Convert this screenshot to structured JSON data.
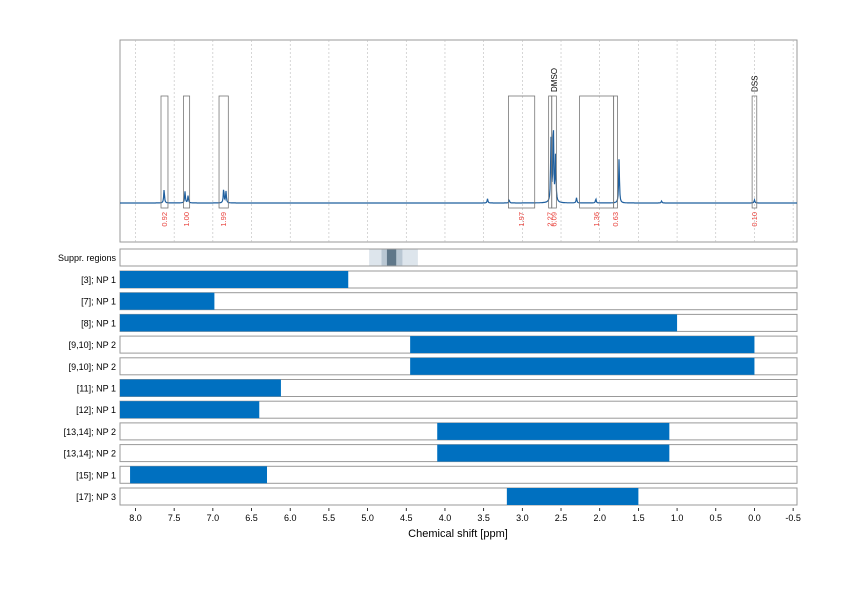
{
  "chart_data": {
    "type": "spectrum",
    "xlabel": "Chemical shift [ppm]",
    "xlim": [
      8.2,
      -0.55
    ],
    "x_tick_labels": [
      "8.0",
      "7.5",
      "7.0",
      "6.5",
      "6.0",
      "5.5",
      "5.0",
      "4.5",
      "4.0",
      "3.5",
      "3.0",
      "2.5",
      "2.0",
      "1.5",
      "1.0",
      "0.5",
      "0.0",
      "-0.5"
    ],
    "colors": {
      "spectrum": "#1f5f9e",
      "bar": "#0070c0",
      "integral": "#e8413b",
      "frame": "#999999",
      "grid": "#bbbbbb"
    },
    "spectrum_peaks": [
      {
        "ppm": 7.63,
        "height": 0.13
      },
      {
        "ppm": 7.36,
        "height": 0.11
      },
      {
        "ppm": 7.32,
        "height": 0.07
      },
      {
        "ppm": 6.86,
        "height": 0.14
      },
      {
        "ppm": 6.83,
        "height": 0.11
      },
      {
        "ppm": 3.45,
        "height": 0.04
      },
      {
        "ppm": 3.17,
        "height": 0.03
      },
      {
        "ppm": 2.63,
        "height": 0.6
      },
      {
        "ppm": 2.6,
        "height": 0.8
      },
      {
        "ppm": 2.57,
        "height": 0.45
      },
      {
        "ppm": 2.3,
        "height": 0.05
      },
      {
        "ppm": 2.05,
        "height": 0.04
      },
      {
        "ppm": 1.75,
        "height": 0.42
      },
      {
        "ppm": 1.2,
        "height": 0.02
      },
      {
        "ppm": 0.0,
        "height": 0.03
      }
    ],
    "integration_regions": [
      {
        "start": 7.67,
        "end": 7.58,
        "integral": "0.92",
        "label": ""
      },
      {
        "start": 7.38,
        "end": 7.3,
        "integral": "1.00",
        "label": ""
      },
      {
        "start": 6.92,
        "end": 6.8,
        "integral": "1.99",
        "label": ""
      },
      {
        "start": 3.18,
        "end": 2.84,
        "integral": "1.97",
        "label": ""
      },
      {
        "start": 2.66,
        "end": 2.62,
        "integral": "2.27",
        "label": ""
      },
      {
        "start": 2.62,
        "end": 2.56,
        "integral": "6.09",
        "label": "DMSO"
      },
      {
        "start": 2.26,
        "end": 1.82,
        "integral": "1.36",
        "label": ""
      },
      {
        "start": 1.82,
        "end": 1.77,
        "integral": "0.63",
        "label": ""
      },
      {
        "start": 0.03,
        "end": -0.03,
        "integral": "0.10",
        "label": "DSS"
      }
    ],
    "suppression": {
      "label": "Suppr. regions",
      "bands": [
        {
          "start": 4.98,
          "end": 4.35,
          "shade": "#dde5ec"
        },
        {
          "start": 4.82,
          "end": 4.55,
          "shade": "#b9c7d3"
        },
        {
          "start": 4.75,
          "end": 4.63,
          "shade": "#5f7789"
        }
      ]
    },
    "rows": [
      {
        "label": "[3]; NP 1",
        "start": 8.2,
        "end": 5.25
      },
      {
        "label": "[7]; NP 1",
        "start": 8.2,
        "end": 6.98
      },
      {
        "label": "[8]; NP 1",
        "start": 8.2,
        "end": 1.0
      },
      {
        "label": "[9,10]; NP 2",
        "start": 4.45,
        "end": 0.0
      },
      {
        "label": "[9,10]; NP 2",
        "start": 4.45,
        "end": 0.0
      },
      {
        "label": "[11]; NP 1",
        "start": 8.2,
        "end": 6.12
      },
      {
        "label": "[12]; NP 1",
        "start": 8.2,
        "end": 6.4
      },
      {
        "label": "[13,14]; NP 2",
        "start": 4.1,
        "end": 1.1
      },
      {
        "label": "[13,14]; NP 2",
        "start": 4.1,
        "end": 1.1
      },
      {
        "label": "[15]; NP 1",
        "start": 8.07,
        "end": 6.3
      },
      {
        "label": "[17]; NP 3",
        "start": 3.2,
        "end": 1.5
      }
    ]
  }
}
